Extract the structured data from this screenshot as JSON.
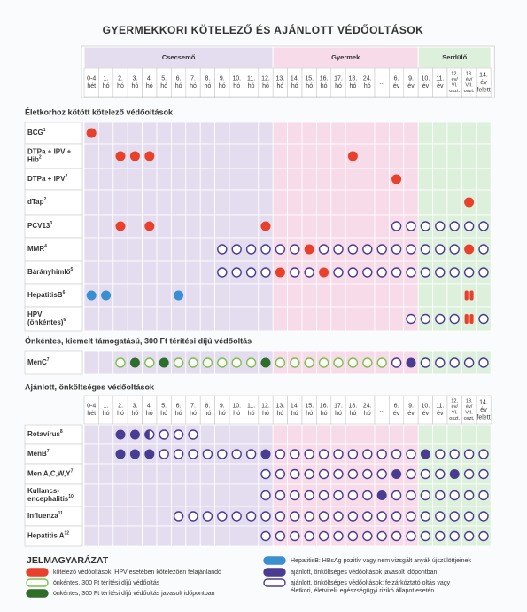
{
  "title": "GYERMEKKORI KÖTELEZŐ ÉS AJÁNLOTT VÉDŐOLTÁSOK",
  "groups": [
    {
      "label": "Csecsemő",
      "color": "#e4dcef",
      "columns": [
        [
          "0-4",
          "hét"
        ],
        [
          "1.",
          "hó"
        ],
        [
          "2.",
          "hó"
        ],
        [
          "3.",
          "hó"
        ],
        [
          "4.",
          "hó"
        ],
        [
          "5.",
          "hó"
        ],
        [
          "6.",
          "hó"
        ],
        [
          "7.",
          "hó"
        ],
        [
          "8.",
          "hó"
        ],
        [
          "9.",
          "hó"
        ],
        [
          "10.",
          "hó"
        ],
        [
          "11.",
          "hó"
        ],
        [
          "12.",
          "hó"
        ]
      ]
    },
    {
      "label": "Gyermek",
      "color": "#f7dbe8",
      "columns": [
        [
          "13.",
          "hó"
        ],
        [
          "14.",
          "hó"
        ],
        [
          "15.",
          "hó"
        ],
        [
          "16.",
          "hó"
        ],
        [
          "17.",
          "hó"
        ],
        [
          "18.",
          "hó"
        ],
        [
          "24.",
          "hó"
        ],
        [
          "..."
        ],
        [
          "6.",
          "év"
        ],
        [
          "9.",
          "év"
        ]
      ]
    },
    {
      "label": "Serdülő",
      "color": "#ddf0dc",
      "columns": [
        [
          "10.",
          "év"
        ],
        [
          "11.",
          "év"
        ],
        [
          "12.",
          "év/",
          "VI.",
          "oszt."
        ],
        [
          "13.",
          "év/",
          "VII.",
          "oszt."
        ],
        [
          "14.",
          "év",
          "felett"
        ]
      ]
    }
  ],
  "sections": [
    {
      "heading": "Életkorhoz kötött kötelező védőoltások",
      "rows": [
        {
          "label": [
            "BCG"
          ],
          "note": "1",
          "marks": [
            "r",
            null,
            null,
            null,
            null,
            null,
            null,
            null,
            null,
            null,
            null,
            null,
            null,
            null,
            null,
            null,
            null,
            null,
            null,
            null,
            null,
            null,
            null,
            null,
            null,
            null,
            null,
            null
          ]
        },
        {
          "label": [
            "DTPa + IPV +",
            "Hib"
          ],
          "note": "2",
          "marks": [
            null,
            null,
            "r",
            "r",
            "r",
            null,
            null,
            null,
            null,
            null,
            null,
            null,
            null,
            null,
            null,
            null,
            null,
            null,
            "r",
            null,
            null,
            null,
            null,
            null,
            null,
            null,
            null,
            null
          ]
        },
        {
          "label": [
            "DTPa + IPV"
          ],
          "note": "2",
          "marks": [
            null,
            null,
            null,
            null,
            null,
            null,
            null,
            null,
            null,
            null,
            null,
            null,
            null,
            null,
            null,
            null,
            null,
            null,
            null,
            null,
            null,
            "r",
            null,
            null,
            null,
            null,
            null,
            null
          ]
        },
        {
          "label": [
            "dTap"
          ],
          "note": "2",
          "marks": [
            null,
            null,
            null,
            null,
            null,
            null,
            null,
            null,
            null,
            null,
            null,
            null,
            null,
            null,
            null,
            null,
            null,
            null,
            null,
            null,
            null,
            null,
            null,
            null,
            null,
            null,
            "r",
            null
          ]
        },
        {
          "label": [
            "PCV13"
          ],
          "note": "3",
          "marks": [
            null,
            null,
            "r",
            null,
            "r",
            null,
            null,
            null,
            null,
            null,
            null,
            null,
            "r",
            null,
            null,
            null,
            null,
            null,
            null,
            null,
            null,
            "po",
            "po",
            "po",
            "po",
            "po",
            "po",
            "po"
          ]
        },
        {
          "label": [
            "MMR"
          ],
          "note": "4",
          "marks": [
            null,
            null,
            null,
            null,
            null,
            null,
            null,
            null,
            null,
            "po",
            "po",
            "po",
            "po",
            "po",
            "po",
            "r",
            "po",
            "po",
            "po",
            "po",
            "po",
            "po",
            "po",
            "po",
            "po",
            "po",
            "r",
            "po"
          ]
        },
        {
          "label": [
            "Bárányhimlő"
          ],
          "note": "5",
          "marks": [
            null,
            null,
            null,
            null,
            null,
            null,
            null,
            null,
            null,
            "po",
            "po",
            "po",
            "po",
            "r",
            "po",
            "po",
            "r",
            "po",
            "po",
            "po",
            "po",
            "po",
            "po",
            "po",
            "po",
            "po",
            "po",
            "po"
          ]
        },
        {
          "label": [
            "HepatitisB"
          ],
          "note": "6",
          "marks": [
            "b",
            "b",
            null,
            null,
            null,
            null,
            "b",
            null,
            null,
            null,
            null,
            null,
            null,
            null,
            null,
            null,
            null,
            null,
            null,
            null,
            null,
            null,
            null,
            null,
            null,
            null,
            "rr",
            null
          ]
        },
        {
          "label": [
            "HPV",
            "(önkéntes)"
          ],
          "note": "6",
          "marks": [
            null,
            null,
            null,
            null,
            null,
            null,
            null,
            null,
            null,
            null,
            null,
            null,
            null,
            null,
            null,
            null,
            null,
            null,
            null,
            null,
            null,
            null,
            "po",
            "po",
            "po",
            "po",
            "rr",
            "po"
          ]
        }
      ]
    },
    {
      "heading": "Önkéntes, kiemelt támogatású, 300 Ft térítési díjú védőoltás",
      "rows": [
        {
          "label": [
            "MenC"
          ],
          "note": "7",
          "marks": [
            null,
            null,
            "go",
            "g",
            "go",
            "g",
            "go",
            "go",
            "go",
            "go",
            "go",
            "go",
            "g",
            "go",
            "go",
            "go",
            "go",
            "go",
            "go",
            "go",
            "go",
            "po",
            "p",
            "po",
            "po",
            "po",
            "po",
            "po"
          ]
        }
      ]
    },
    {
      "heading": "Ajánlott, önköltséges védőoltások",
      "header": true,
      "rows": [
        {
          "label": [
            "Rotavírus"
          ],
          "note": "8",
          "marks": [
            null,
            null,
            "p",
            "p",
            "ph",
            "po",
            "po",
            "po",
            null,
            null,
            null,
            null,
            null,
            null,
            null,
            null,
            null,
            null,
            null,
            null,
            null,
            null,
            null,
            null,
            null,
            null,
            null,
            null
          ]
        },
        {
          "label": [
            "MenB"
          ],
          "note": "7",
          "marks": [
            null,
            null,
            "p",
            "p",
            "p",
            "po",
            "po",
            "po",
            "po",
            "po",
            "po",
            "po",
            "p",
            "po",
            "po",
            "po",
            "po",
            "po",
            "po",
            "po",
            "po",
            "po",
            "po",
            "p",
            "po",
            "po",
            "po",
            "po"
          ]
        },
        {
          "label": [
            "Men A,C,W,Y"
          ],
          "note": "7",
          "marks": [
            null,
            null,
            null,
            null,
            null,
            null,
            null,
            null,
            null,
            null,
            null,
            null,
            "po",
            "po",
            "po",
            "po",
            "po",
            "po",
            "po",
            "po",
            "po",
            "p",
            "po",
            "po",
            "po",
            "p",
            "po",
            "po"
          ]
        },
        {
          "label": [
            "Kullancs-",
            "encephalitis"
          ],
          "note": "10",
          "marks": [
            null,
            null,
            null,
            null,
            null,
            null,
            null,
            null,
            null,
            null,
            null,
            null,
            "po",
            "po",
            "po",
            "po",
            "po",
            "po",
            "po",
            "po",
            "p",
            "po",
            "po",
            "po",
            "po",
            "po",
            "po",
            "po"
          ]
        },
        {
          "label": [
            "Influenza"
          ],
          "note": "11",
          "marks": [
            null,
            null,
            null,
            null,
            null,
            null,
            "po",
            "po",
            "po",
            "po",
            "po",
            "po",
            "po",
            "po",
            "po",
            "po",
            "po",
            "po",
            "po",
            "po",
            "po",
            "po",
            "po",
            "po",
            "po",
            "po",
            "po",
            "po"
          ]
        },
        {
          "label": [
            "Hepatitis A"
          ],
          "note": "12",
          "marks": [
            null,
            null,
            null,
            null,
            null,
            null,
            null,
            null,
            null,
            null,
            null,
            null,
            "po",
            "po",
            "po",
            "po",
            "po",
            "po",
            "po",
            "po",
            "po",
            "po",
            "po",
            "po",
            "po",
            "po",
            "po",
            "po"
          ]
        }
      ]
    }
  ],
  "legend": {
    "title": "JELMAGYARÁZAT",
    "items": [
      {
        "marker": "r",
        "text": [
          "kötelező védőoltások, HPV esetében kötelezően felajánlandó"
        ]
      },
      {
        "marker": "go",
        "text": [
          "önkéntes, 300 Ft térítési díjú védőoltás"
        ]
      },
      {
        "marker": "g",
        "text": [
          "önkéntes, 300 Ft térítési díjú védőoltás javasolt időpontban"
        ]
      },
      {
        "marker": "b",
        "text": [
          "HepatitisB: HBsAg pozitív vagy nem vizsgált anyák újszülöttjeinek"
        ]
      },
      {
        "marker": "p",
        "text": [
          "ajánlott, önköltséges védőoltások javasolt időpontban"
        ]
      },
      {
        "marker": "po",
        "text": [
          "ajánlott, önköltséges védőoltások: felzárkóztató oltás vagy",
          "életkori, életviteli, egészségügyi rizikó állapot esetén"
        ]
      }
    ]
  }
}
